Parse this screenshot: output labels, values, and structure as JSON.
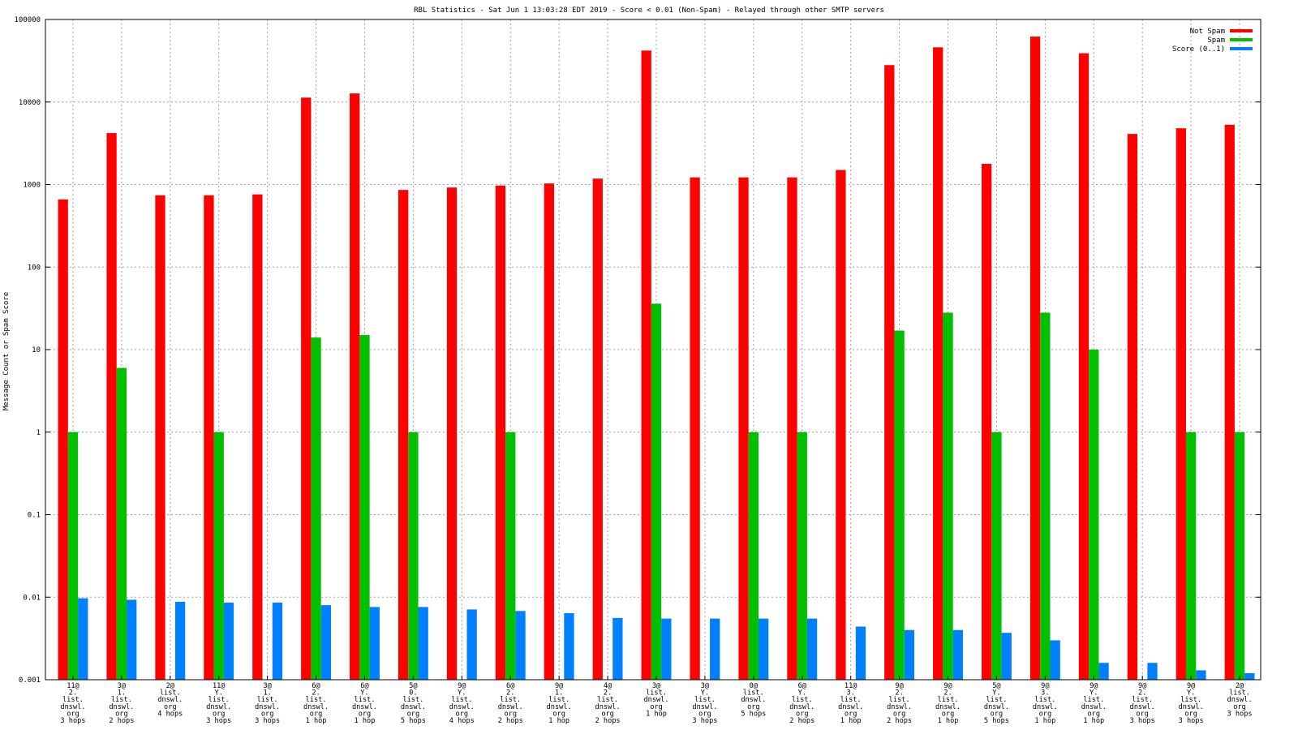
{
  "chart_data": {
    "type": "bar",
    "title": "RBL Statistics - Sat Jun  1 13:03:28 EDT 2019 - Score < 0.01 (Non-Spam) - Relayed through other SMTP servers",
    "xlabel": "",
    "ylabel": "Message Count or Spam Score",
    "yscale": "log",
    "ylim": [
      0.001,
      100000
    ],
    "yticks": [
      "0.001",
      "0.01",
      "0.1",
      "1",
      "10",
      "100",
      "1000",
      "10000",
      "100000"
    ],
    "grid": true,
    "legend_position": "top-right",
    "categories": [
      [
        "11@",
        "2.",
        "list.",
        "dnswl.",
        "org",
        "3 hops"
      ],
      [
        "3@",
        "1.",
        "list.",
        "dnswl.",
        "org",
        "2 hops"
      ],
      [
        "2@",
        "list.",
        "dnswl.",
        "org",
        "4 hops"
      ],
      [
        "11@",
        "Y.",
        "list.",
        "dnswl.",
        "org",
        "3 hops"
      ],
      [
        "3@",
        "1.",
        "list.",
        "dnswl.",
        "org",
        "3 hops"
      ],
      [
        "6@",
        "2.",
        "list.",
        "dnswl.",
        "org",
        "1 hop"
      ],
      [
        "6@",
        "Y.",
        "list.",
        "dnswl.",
        "org",
        "1 hop"
      ],
      [
        "5@",
        "0.",
        "list.",
        "dnswl.",
        "org",
        "5 hops"
      ],
      [
        "9@",
        "Y.",
        "list.",
        "dnswl.",
        "org",
        "4 hops"
      ],
      [
        "6@",
        "2.",
        "list.",
        "dnswl.",
        "org",
        "2 hops"
      ],
      [
        "9@",
        "1.",
        "list.",
        "dnswl.",
        "org",
        "1 hop"
      ],
      [
        "4@",
        "2.",
        "list.",
        "dnswl.",
        "org",
        "2 hops"
      ],
      [
        "3@",
        "list.",
        "dnswl.",
        "org",
        "1 hop"
      ],
      [
        "3@",
        "Y.",
        "list.",
        "dnswl.",
        "org",
        "3 hops"
      ],
      [
        "0@",
        "list.",
        "dnswl.",
        "org",
        "5 hops"
      ],
      [
        "6@",
        "Y.",
        "list.",
        "dnswl.",
        "org",
        "2 hops"
      ],
      [
        "11@",
        "3.",
        "list.",
        "dnswl.",
        "org",
        "1 hop"
      ],
      [
        "9@",
        "2.",
        "list.",
        "dnswl.",
        "org",
        "2 hops"
      ],
      [
        "9@",
        "2.",
        "list.",
        "dnswl.",
        "org",
        "1 hop"
      ],
      [
        "5@",
        "Y.",
        "list.",
        "dnswl.",
        "org",
        "5 hops"
      ],
      [
        "9@",
        "3.",
        "list.",
        "dnswl.",
        "org",
        "1 hop"
      ],
      [
        "9@",
        "Y.",
        "list.",
        "dnswl.",
        "org",
        "1 hop"
      ],
      [
        "9@",
        "2.",
        "list.",
        "dnswl.",
        "org",
        "3 hops"
      ],
      [
        "9@",
        "Y.",
        "list.",
        "dnswl.",
        "org",
        "3 hops"
      ],
      [
        "2@",
        "list.",
        "dnswl.",
        "org",
        "3 hops"
      ]
    ],
    "series": [
      {
        "name": "Not Spam",
        "color": "#ff0000",
        "values": [
          660,
          4200,
          740,
          740,
          760,
          11300,
          12700,
          860,
          920,
          970,
          1030,
          1180,
          42000,
          1220,
          1220,
          1220,
          1500,
          28000,
          46000,
          1780,
          62000,
          39000,
          4100,
          4800,
          5300
        ]
      },
      {
        "name": "Spam",
        "color": "#00c000",
        "values": [
          1,
          6,
          null,
          1,
          null,
          14,
          15,
          1,
          null,
          1,
          null,
          null,
          36,
          null,
          1,
          1,
          null,
          17,
          28,
          1,
          28,
          10,
          null,
          1,
          1
        ]
      },
      {
        "name": "Score (0..1)",
        "color": "#0080ff",
        "values": [
          0.0097,
          0.0093,
          0.0088,
          0.0086,
          0.0086,
          0.008,
          0.0076,
          0.0076,
          0.0071,
          0.0068,
          0.0064,
          0.0056,
          0.0055,
          0.0055,
          0.0055,
          0.0055,
          0.0044,
          0.004,
          0.004,
          0.0037,
          0.003,
          0.0016,
          0.0016,
          0.0013,
          0.0012
        ]
      }
    ]
  }
}
